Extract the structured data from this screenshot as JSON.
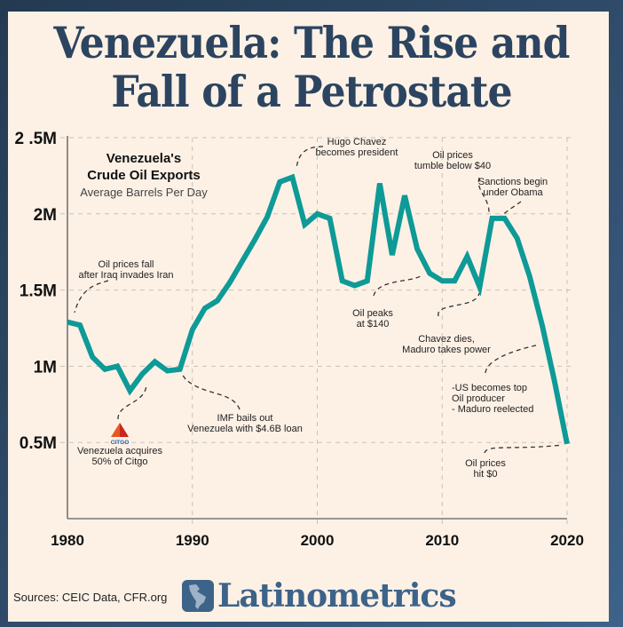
{
  "page": {
    "title_line1": "Venezuela: The Rise and",
    "title_line2": "Fall of a Petrostate",
    "source": "Sources: CEIC Data, CFR.org",
    "brand": "Latinometrics",
    "accent_color": "#0e9a96",
    "brand_color": "#3d6389"
  },
  "chart_data": {
    "type": "line",
    "title": "Venezuela's Crude Oil Exports",
    "subtitle": "Average Barrels Per Day",
    "xlabel": "",
    "ylabel": "",
    "xlim": [
      1980,
      2020
    ],
    "ylim": [
      0,
      2500000
    ],
    "grid": true,
    "x_ticks": [
      1980,
      1990,
      2000,
      2010,
      2020
    ],
    "x_tick_labels": [
      "1980",
      "1990",
      "2000",
      "2010",
      "2020"
    ],
    "y_ticks": [
      500000,
      1000000,
      1500000,
      2000000,
      2500000
    ],
    "y_tick_labels": [
      "0.5M",
      "1M",
      "1.5M",
      "2M",
      "2 .5M"
    ],
    "series": [
      {
        "name": "Crude Oil Exports",
        "color": "#0e9a96",
        "x": [
          1980,
          1981,
          1982,
          1983,
          1984,
          1985,
          1986,
          1987,
          1988,
          1989,
          1990,
          1991,
          1992,
          1993,
          1994,
          1995,
          1996,
          1997,
          1998,
          1999,
          2000,
          2001,
          2002,
          2003,
          2004,
          2005,
          2006,
          2007,
          2008,
          2009,
          2010,
          2011,
          2012,
          2013,
          2014,
          2015,
          2016,
          2017,
          2018,
          2019,
          2020
        ],
        "values": [
          1290000,
          1270000,
          1060000,
          980000,
          1000000,
          840000,
          950000,
          1030000,
          970000,
          980000,
          1240000,
          1380000,
          1430000,
          1550000,
          1690000,
          1830000,
          1980000,
          2210000,
          2240000,
          1930000,
          2000000,
          1970000,
          1560000,
          1530000,
          1560000,
          2200000,
          1730000,
          2120000,
          1770000,
          1610000,
          1560000,
          1560000,
          1720000,
          1520000,
          1970000,
          1970000,
          1840000,
          1590000,
          1270000,
          900000,
          490000
        ]
      }
    ],
    "annotations": [
      {
        "lines": [
          "Oil prices fall",
          "after Iraq invades Iran"
        ],
        "x": 1980
      },
      {
        "lines": [
          "Venezuela acquires",
          "50% of Citgo"
        ],
        "x": 1986,
        "icon": "citgo-logo"
      },
      {
        "lines": [
          "IMF bails out",
          "Venezuela with $4.6B loan"
        ],
        "x": 1989
      },
      {
        "lines": [
          "Hugo Chavez",
          "becomes president"
        ],
        "x": 1998
      },
      {
        "lines": [
          "Oil peaks",
          "at $140"
        ],
        "x": 2008
      },
      {
        "lines": [
          "Oil prices",
          "tumble below $40"
        ],
        "x": 2014
      },
      {
        "lines": [
          "Sanctions begin",
          "under Obama"
        ],
        "x": 2015
      },
      {
        "lines": [
          "Chavez dies,",
          "Maduro takes power"
        ],
        "x": 2013
      },
      {
        "lines": [
          "-US becomes top",
          "Oil producer",
          "- Maduro reelected"
        ],
        "x": 2018
      },
      {
        "lines": [
          "Oil prices",
          "hit $0"
        ],
        "x": 2020
      }
    ]
  }
}
